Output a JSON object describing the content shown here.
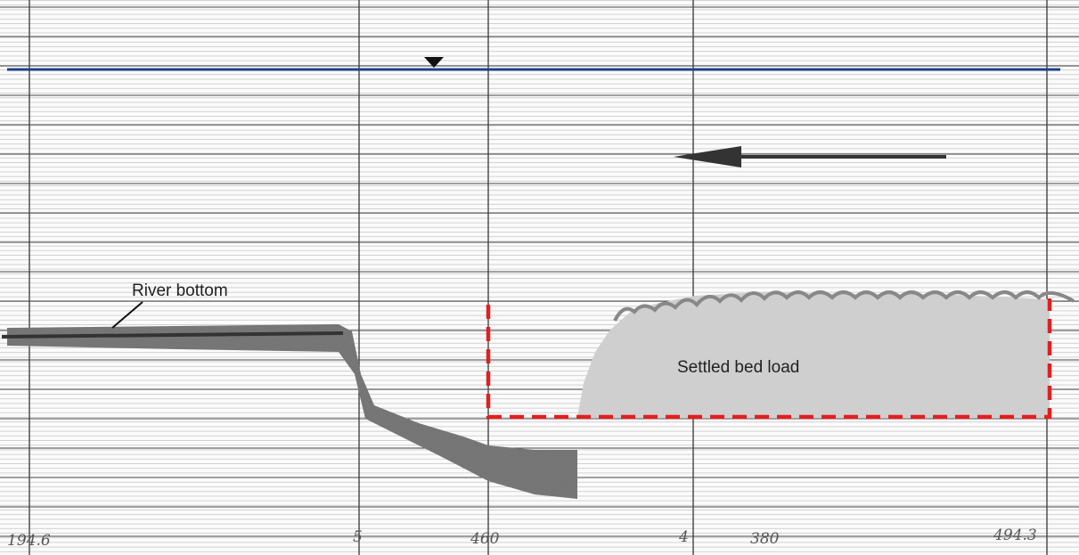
{
  "annotations": {
    "river_bottom": "River bottom",
    "settled_bed_load": "Settled bed load"
  },
  "chart_marks": [
    "194.6",
    "5",
    "460",
    "4",
    "380",
    "494.3"
  ]
}
